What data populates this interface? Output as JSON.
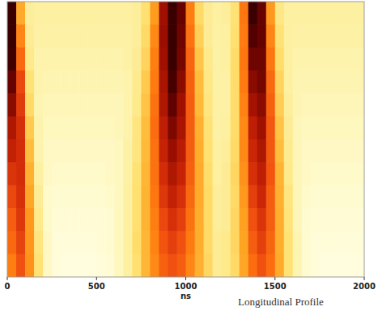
{
  "chart_data": {
    "type": "heatmap",
    "title": "Longitudinal Profile",
    "x_label": "ns",
    "xlim": [
      0,
      2000
    ],
    "xticks": [
      0,
      500,
      1000,
      1500,
      2000
    ],
    "tick_labels": "x",
    "grid": false,
    "zlim": [
      0,
      100
    ],
    "x_edges": [
      0,
      50,
      100,
      150,
      200,
      250,
      300,
      350,
      400,
      450,
      500,
      550,
      600,
      650,
      700,
      750,
      800,
      850,
      900,
      950,
      1000,
      1050,
      1100,
      1150,
      1200,
      1250,
      1300,
      1350,
      1400,
      1450,
      1500,
      1550,
      1600,
      1650,
      1700,
      1750,
      1800,
      1850,
      1900,
      1950,
      2000
    ],
    "cells": [
      [
        100,
        42,
        17,
        16,
        16,
        16,
        16,
        16,
        16,
        16,
        16,
        16,
        16,
        16,
        17,
        25,
        46,
        85,
        100,
        93,
        54,
        27,
        18,
        16,
        17,
        24,
        56,
        100,
        93,
        47,
        21,
        16,
        16,
        16,
        16,
        16,
        16,
        16,
        16,
        16
      ],
      [
        100,
        52,
        18,
        15,
        15,
        15,
        15,
        15,
        15,
        15,
        15,
        15,
        15,
        15,
        17,
        27,
        51,
        86,
        100,
        92,
        57,
        30,
        18,
        15,
        16,
        25,
        55,
        96,
        93,
        52,
        24,
        16,
        15,
        15,
        15,
        15,
        15,
        15,
        15,
        15
      ],
      [
        99,
        59,
        20,
        14,
        14,
        14,
        14,
        14,
        14,
        14,
        14,
        14,
        14,
        15,
        18,
        29,
        54,
        85,
        100,
        91,
        60,
        33,
        20,
        15,
        16,
        26,
        56,
        92,
        92,
        56,
        26,
        16,
        14,
        14,
        14,
        14,
        14,
        14,
        14,
        14
      ],
      [
        93,
        67,
        24,
        14,
        13,
        13,
        13,
        13,
        13,
        13,
        13,
        13,
        13,
        14,
        19,
        32,
        55,
        83,
        98,
        88,
        61,
        36,
        21,
        15,
        15,
        26,
        55,
        88,
        91,
        59,
        29,
        16,
        13,
        13,
        13,
        13,
        13,
        13,
        13,
        13
      ],
      [
        88,
        70,
        27,
        13,
        12,
        12,
        12,
        12,
        12,
        12,
        12,
        12,
        12,
        14,
        20,
        34,
        57,
        82,
        94,
        85,
        62,
        37,
        22,
        15,
        15,
        26,
        53,
        84,
        88,
        61,
        31,
        17,
        13,
        12,
        12,
        12,
        12,
        12,
        12,
        12
      ],
      [
        82,
        73,
        32,
        14,
        11,
        11,
        11,
        11,
        11,
        11,
        11,
        11,
        12,
        14,
        22,
        36,
        58,
        79,
        90,
        83,
        62,
        40,
        24,
        15,
        16,
        26,
        51,
        79,
        85,
        63,
        34,
        18,
        12,
        11,
        11,
        11,
        11,
        11,
        11,
        11
      ],
      [
        78,
        74,
        36,
        14,
        10,
        10,
        10,
        10,
        10,
        10,
        10,
        10,
        11,
        15,
        22,
        37,
        57,
        77,
        86,
        80,
        62,
        41,
        25,
        16,
        17,
        27,
        51,
        76,
        82,
        63,
        36,
        19,
        12,
        10,
        10,
        10,
        10,
        10,
        10,
        10
      ],
      [
        72,
        74,
        40,
        16,
        10,
        9,
        9,
        9,
        9,
        9,
        9,
        10,
        11,
        15,
        24,
        38,
        57,
        74,
        82,
        77,
        61,
        42,
        26,
        16,
        18,
        28,
        49,
        73,
        79,
        64,
        39,
        20,
        12,
        10,
        9,
        9,
        9,
        9,
        9,
        9
      ],
      [
        67,
        73,
        43,
        18,
        9,
        8,
        8,
        8,
        8,
        8,
        8,
        9,
        11,
        16,
        25,
        39,
        56,
        71,
        78,
        73,
        59,
        42,
        27,
        17,
        18,
        27,
        47,
        69,
        76,
        62,
        40,
        22,
        12,
        9,
        8,
        8,
        8,
        8,
        8,
        8
      ],
      [
        62,
        71,
        47,
        20,
        9,
        7,
        7,
        7,
        7,
        7,
        7,
        8,
        11,
        16,
        25,
        39,
        54,
        67,
        73,
        69,
        57,
        41,
        27,
        17,
        18,
        28,
        45,
        65,
        72,
        62,
        41,
        23,
        12,
        8,
        7,
        7,
        7,
        7,
        7,
        7
      ],
      [
        59,
        68,
        48,
        22,
        10,
        6,
        6,
        6,
        6,
        6,
        7,
        8,
        11,
        16,
        26,
        38,
        53,
        64,
        69,
        65,
        55,
        41,
        27,
        18,
        20,
        28,
        44,
        62,
        69,
        60,
        41,
        24,
        13,
        8,
        6,
        6,
        6,
        6,
        6,
        6
      ],
      [
        54,
        65,
        49,
        24,
        10,
        6,
        5,
        5,
        5,
        5,
        6,
        7,
        11,
        16,
        25,
        38,
        51,
        61,
        65,
        62,
        52,
        40,
        28,
        18,
        20,
        27,
        43,
        58,
        65,
        58,
        42,
        24,
        13,
        8,
        6,
        5,
        5,
        5,
        5,
        5
      ]
    ]
  }
}
